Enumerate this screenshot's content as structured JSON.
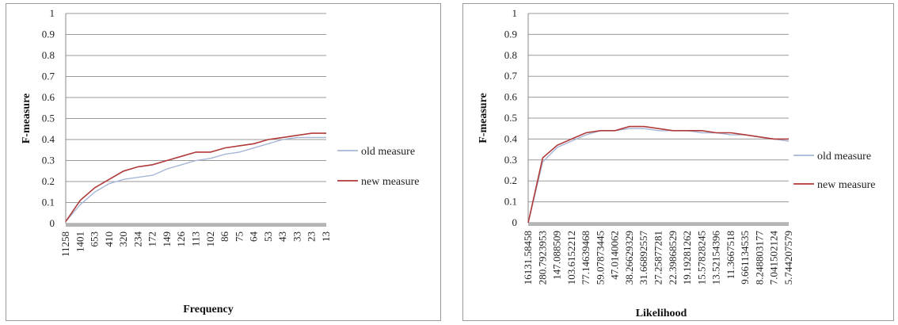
{
  "chart_data": [
    {
      "type": "line",
      "xlabel": "Frequency",
      "ylabel": "F-measure",
      "ylim": [
        0,
        1
      ],
      "yticks": [
        "0",
        "0.1",
        "0.2",
        "0.3",
        "0.4",
        "0.5",
        "0.6",
        "0.7",
        "0.8",
        "0.9",
        "1"
      ],
      "x": [
        "11258",
        "1401",
        "653",
        "410",
        "320",
        "234",
        "172",
        "149",
        "126",
        "113",
        "102",
        "86",
        "75",
        "64",
        "53",
        "43",
        "33",
        "23",
        "13"
      ],
      "grid": true,
      "legend_position": "right",
      "series": [
        {
          "name": "old measure",
          "color": "#a6b6d6",
          "values": [
            0.01,
            0.09,
            0.15,
            0.19,
            0.21,
            0.22,
            0.23,
            0.26,
            0.28,
            0.3,
            0.31,
            0.33,
            0.34,
            0.36,
            0.38,
            0.4,
            0.41,
            0.41,
            0.41
          ]
        },
        {
          "name": "new measure",
          "color": "#b03a3a",
          "values": [
            0.01,
            0.11,
            0.17,
            0.21,
            0.25,
            0.27,
            0.28,
            0.3,
            0.32,
            0.34,
            0.34,
            0.36,
            0.37,
            0.38,
            0.4,
            0.41,
            0.42,
            0.43,
            0.43
          ]
        }
      ]
    },
    {
      "type": "line",
      "xlabel": "Likelihood",
      "ylabel": "F-measure",
      "ylim": [
        0,
        1
      ],
      "yticks": [
        "0",
        "0.1",
        "0.2",
        "0.3",
        "0.4",
        "0.5",
        "0.6",
        "0.7",
        "0.8",
        "0.9",
        "1"
      ],
      "x": [
        "16131.58458",
        "280.7923953",
        "147.088509",
        "103.6152212",
        "77.14639468",
        "59.07873445",
        "47.0140062",
        "38.26629329",
        "31.66892557",
        "27.25877281",
        "22.39868529",
        "19.19281262",
        "15.57828245",
        "13.52154396",
        "11.3667518",
        "9.661134535",
        "8.248803177",
        "7.041502124",
        "5.744207579"
      ],
      "grid": true,
      "legend_position": "right",
      "series": [
        {
          "name": "old measure",
          "color": "#a6b6d6",
          "values": [
            0.0,
            0.29,
            0.36,
            0.39,
            0.42,
            0.44,
            0.44,
            0.45,
            0.45,
            0.44,
            0.44,
            0.44,
            0.43,
            0.43,
            0.42,
            0.42,
            0.41,
            0.4,
            0.39
          ]
        },
        {
          "name": "new measure",
          "color": "#b03a3a",
          "values": [
            0.0,
            0.31,
            0.37,
            0.4,
            0.43,
            0.44,
            0.44,
            0.46,
            0.46,
            0.45,
            0.44,
            0.44,
            0.44,
            0.43,
            0.43,
            0.42,
            0.41,
            0.4,
            0.4
          ]
        }
      ]
    }
  ]
}
